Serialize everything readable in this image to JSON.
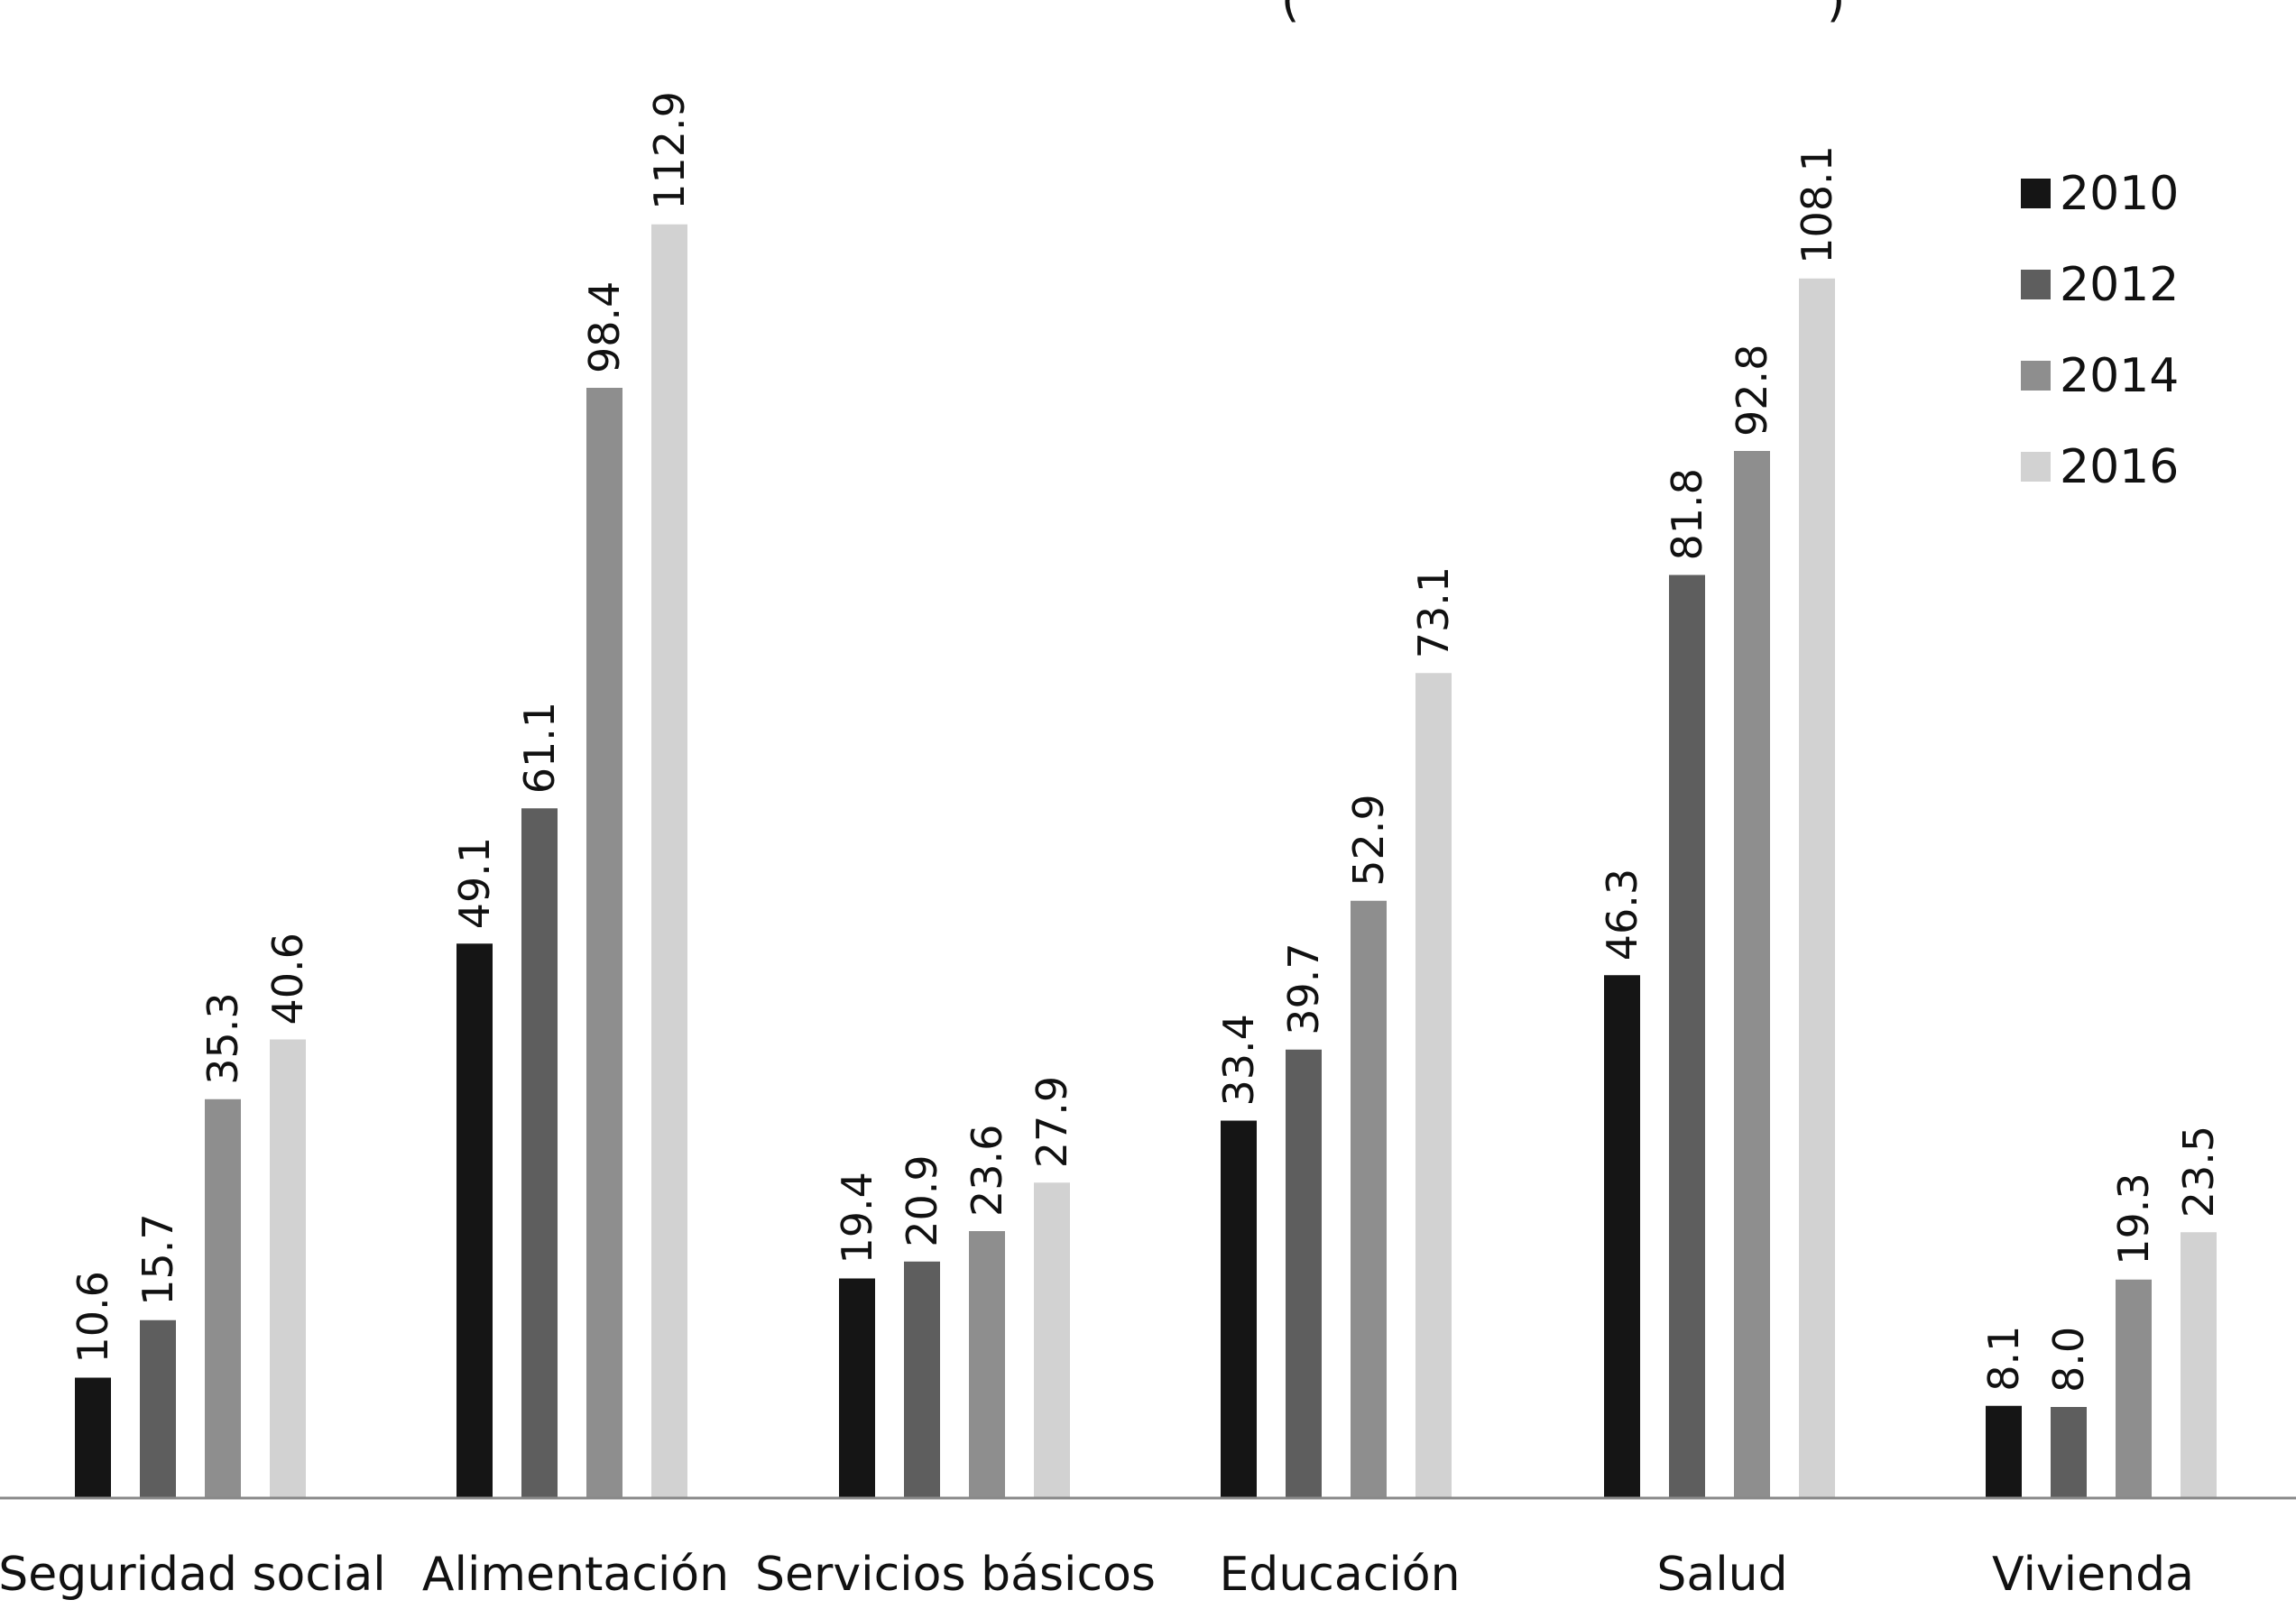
{
  "chart_data": {
    "type": "bar",
    "title_fragment": "(",
    "title_fragment_end": ")",
    "categories": [
      "Seguridad social",
      "Alimentación",
      "Servicios básicos",
      "Educación",
      "Salud",
      "Vivienda"
    ],
    "series": [
      {
        "name": "2010",
        "color": "#151515",
        "values": [
          10.6,
          49.1,
          19.4,
          33.4,
          46.3,
          8.1
        ]
      },
      {
        "name": "2012",
        "color": "#5e5e5e",
        "values": [
          15.7,
          61.1,
          20.9,
          39.7,
          81.8,
          8.0
        ]
      },
      {
        "name": "2014",
        "color": "#8e8e8e",
        "values": [
          35.3,
          98.4,
          23.6,
          52.9,
          92.8,
          19.3
        ]
      },
      {
        "name": "2016",
        "color": "#d2d2d2",
        "values": [
          40.6,
          112.9,
          27.9,
          73.1,
          108.1,
          23.5
        ]
      }
    ],
    "data_labels": [
      [
        "10.6",
        "49.1",
        "19.4",
        "33.4",
        "46.3",
        "8.1"
      ],
      [
        "15.7",
        "61.1",
        "20.9",
        "39.7",
        "81.8",
        "8.0"
      ],
      [
        "35.3",
        "98.4",
        "23.6",
        "52.9",
        "92.8",
        "19.3"
      ],
      [
        "40.6",
        "112.9",
        "27.9",
        "73.1",
        "108.1",
        "23.5"
      ]
    ],
    "ylim": [
      0,
      125
    ],
    "legend_position": "top-right",
    "grid": false,
    "axis_color": "#888888"
  }
}
